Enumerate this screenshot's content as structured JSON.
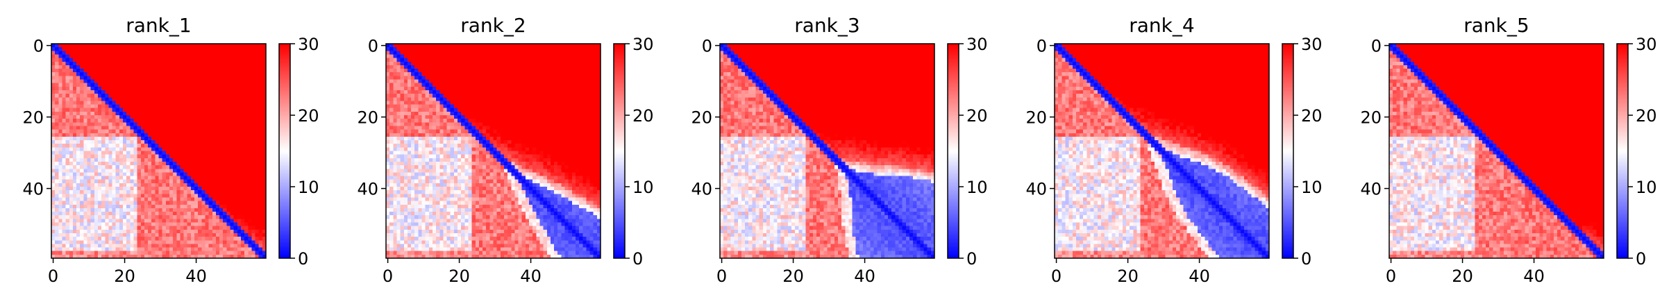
{
  "chart_data": {
    "type": "heatmap",
    "colormap": "bwr",
    "colormap_stops": [
      "#0000ff",
      "#ffffff",
      "#ff0000"
    ],
    "value_range": [
      0,
      30
    ],
    "matrix_size": 60,
    "axis_ticks": [
      0,
      20,
      40
    ],
    "colorbar_ticks": [
      0,
      10,
      20,
      30
    ],
    "panels": [
      {
        "title": "rank_1",
        "boundary": [
          8,
          14,
          20,
          25,
          30,
          36,
          42,
          46,
          50,
          54,
          58,
          60
        ],
        "bleed": 3
      },
      {
        "title": "rank_2",
        "boundary": [
          10,
          16,
          21,
          24,
          28,
          31,
          34,
          37,
          39,
          42,
          45,
          48
        ],
        "bleed": 3
      },
      {
        "title": "rank_3",
        "boundary": [
          12,
          18,
          24,
          28,
          31,
          33,
          34,
          35,
          36,
          36,
          37,
          38
        ],
        "bleed": 2.5
      },
      {
        "title": "rank_4",
        "boundary": [
          8,
          14,
          19,
          23,
          26,
          28,
          30,
          32,
          34,
          37,
          41,
          45
        ],
        "bleed": 3
      },
      {
        "title": "rank_5",
        "boundary": [
          8,
          14,
          19,
          25,
          31,
          38,
          45,
          50,
          54,
          57,
          59,
          60
        ],
        "bleed": 3
      }
    ]
  }
}
